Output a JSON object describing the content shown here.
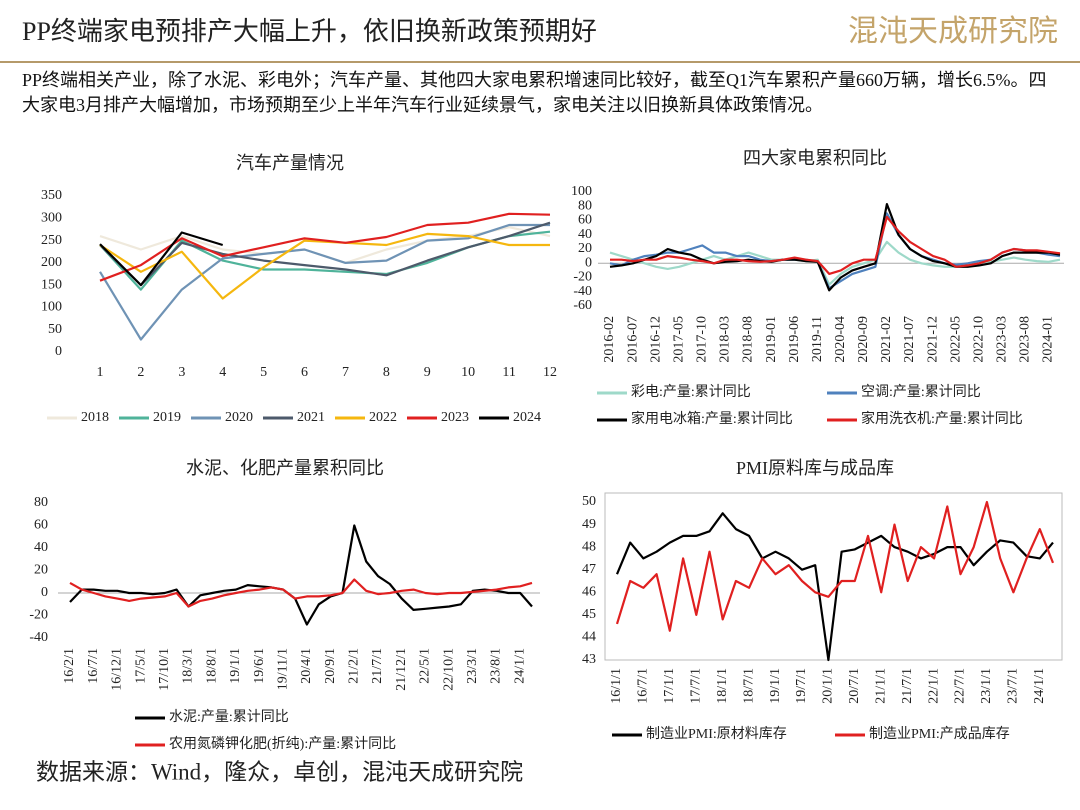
{
  "header": {
    "title": "PP终端家电预排产大幅上升，依旧换新政策预期好",
    "logo": "混沌天成研究院"
  },
  "description": "PP终端相关产业，除了水泥、彩电外；汽车产量、其他四大家电累积增速同比较好，截至Q1汽车累积产量660万辆，增长6.5%。四大家电3月排产大幅增加，市场预期至少上半年汽车行业延续景气，家电关注以旧换新具体政策情况。",
  "source": "数据来源：Wind，隆众，卓创，混沌天成研究院",
  "chart_data": [
    {
      "type": "line",
      "title": "汽车产量情况",
      "categories": [
        1,
        2,
        3,
        4,
        5,
        6,
        7,
        8,
        9,
        10,
        11,
        12
      ],
      "ylim": [
        0,
        350
      ],
      "yticks": [
        0,
        50,
        100,
        150,
        200,
        250,
        300,
        350
      ],
      "series": [
        {
          "name": "2018",
          "color": "#efe9dc",
          "values": [
            260,
            230,
            260,
            230,
            220,
            230,
            200,
            230,
            250,
            260,
            280,
            260
          ]
        },
        {
          "name": "2019",
          "color": "#4fb39a",
          "values": [
            240,
            140,
            250,
            205,
            185,
            185,
            180,
            175,
            200,
            235,
            260,
            270
          ]
        },
        {
          "name": "2020",
          "color": "#6f93b5",
          "values": [
            180,
            28,
            140,
            210,
            220,
            230,
            200,
            205,
            250,
            255,
            285,
            285
          ]
        },
        {
          "name": "2021",
          "color": "#4d5a6b",
          "values": [
            240,
            150,
            245,
            220,
            205,
            195,
            185,
            172,
            205,
            235,
            260,
            290
          ]
        },
        {
          "name": "2022",
          "color": "#f5b70f",
          "values": [
            240,
            180,
            225,
            120,
            190,
            250,
            245,
            240,
            265,
            260,
            240,
            240
          ]
        },
        {
          "name": "2023",
          "color": "#e02020",
          "values": [
            160,
            195,
            255,
            215,
            235,
            255,
            245,
            258,
            285,
            290,
            310,
            308
          ]
        },
        {
          "name": "2024",
          "color": "#000000",
          "values": [
            242,
            150,
            268,
            240,
            null,
            null,
            null,
            null,
            null,
            null,
            null,
            null
          ]
        }
      ]
    },
    {
      "type": "line",
      "title": "四大家电累积同比",
      "categories": [
        "2016-02",
        null,
        "2016-07",
        null,
        "2016-12",
        null,
        "2017-05",
        null,
        "2017-10",
        null,
        "2018-03",
        null,
        "2018-08",
        null,
        "2019-01",
        null,
        "2019-06",
        null,
        "2019-11",
        null,
        "2020-04",
        null,
        "2020-09",
        null,
        "2021-02",
        null,
        "2021-07",
        null,
        "2021-12",
        null,
        "2022-05",
        null,
        "2022-10",
        null,
        "2023-03",
        null,
        "2023-08",
        null,
        "2024-01",
        null
      ],
      "ylim": [
        -60,
        100
      ],
      "yticks": [
        -60,
        -40,
        -20,
        0,
        20,
        40,
        60,
        80,
        100
      ],
      "series": [
        {
          "name": "彩电:产量:累计同比",
          "color": "#9ed9c9",
          "values": [
            15,
            10,
            5,
            0,
            -5,
            -8,
            -5,
            0,
            5,
            10,
            5,
            10,
            15,
            10,
            5,
            5,
            5,
            3,
            5,
            -30,
            -15,
            -5,
            0,
            5,
            30,
            15,
            5,
            0,
            -3,
            -5,
            -5,
            -3,
            0,
            2,
            5,
            8,
            5,
            3,
            2,
            5
          ]
        },
        {
          "name": "空调:产量:累计同比",
          "color": "#4f81bd",
          "values": [
            0,
            -3,
            5,
            10,
            12,
            15,
            15,
            20,
            25,
            15,
            15,
            10,
            10,
            5,
            3,
            5,
            5,
            5,
            2,
            -35,
            -25,
            -15,
            -10,
            -5,
            70,
            40,
            20,
            10,
            5,
            0,
            -2,
            0,
            3,
            5,
            15,
            20,
            18,
            15,
            12,
            10
          ]
        },
        {
          "name": "家用电冰箱:产量:累计同比",
          "color": "#000000",
          "values": [
            -5,
            -3,
            0,
            5,
            10,
            20,
            15,
            12,
            5,
            0,
            2,
            3,
            5,
            3,
            2,
            5,
            5,
            3,
            2,
            -38,
            -20,
            -10,
            -5,
            0,
            83,
            40,
            20,
            10,
            3,
            0,
            -5,
            -5,
            -3,
            0,
            10,
            15,
            15,
            15,
            15,
            12
          ]
        },
        {
          "name": "家用洗衣机:产量:累计同比",
          "color": "#e02020",
          "values": [
            5,
            5,
            3,
            5,
            5,
            10,
            8,
            5,
            3,
            0,
            5,
            5,
            3,
            2,
            3,
            5,
            8,
            5,
            3,
            -15,
            -10,
            0,
            5,
            5,
            65,
            45,
            30,
            20,
            10,
            5,
            -5,
            -3,
            0,
            5,
            15,
            20,
            18,
            18,
            16,
            14
          ]
        }
      ]
    },
    {
      "type": "line",
      "title": "水泥、化肥产量累积同比",
      "categories": [
        "16/2/1",
        null,
        "16/7/1",
        null,
        "16/12/1",
        null,
        "17/5/1",
        null,
        "17/10/1",
        null,
        "18/3/1",
        null,
        "18/8/1",
        null,
        "19/1/1",
        null,
        "19/6/1",
        null,
        "19/11/1",
        null,
        "20/4/1",
        null,
        "20/9/1",
        null,
        "21/2/1",
        null,
        "21/7/1",
        null,
        "21/12/1",
        null,
        "22/5/1",
        null,
        "22/10/1",
        null,
        "23/3/1",
        null,
        "23/8/1",
        null,
        "24/1/1",
        null
      ],
      "ylim": [
        -40,
        80
      ],
      "yticks": [
        -40,
        -20,
        0,
        20,
        40,
        60,
        80
      ],
      "series": [
        {
          "name": "水泥:产量:累计同比",
          "color": "#000000",
          "values": [
            -8,
            3,
            3,
            2,
            2,
            0,
            0,
            -1,
            0,
            3,
            -12,
            -2,
            0,
            2,
            3,
            7,
            6,
            5,
            3,
            -5,
            -28,
            -10,
            -3,
            0,
            60,
            28,
            15,
            8,
            -5,
            -15,
            -14,
            -13,
            -12,
            -10,
            2,
            3,
            2,
            0,
            0,
            -12
          ]
        },
        {
          "name": "农用氮磷钾化肥(折纯):产量:累计同比",
          "color": "#e02020",
          "values": [
            9,
            3,
            0,
            -3,
            -5,
            -7,
            -5,
            -4,
            -3,
            0,
            -12,
            -7,
            -5,
            -2,
            0,
            2,
            3,
            5,
            3,
            -5,
            -3,
            -3,
            -2,
            0,
            12,
            2,
            -1,
            0,
            2,
            3,
            0,
            -1,
            0,
            0,
            1,
            2,
            3,
            5,
            6,
            9
          ]
        }
      ]
    },
    {
      "type": "line",
      "title": "PMI原料库与成品库",
      "categories": [
        "16/1/1",
        null,
        "16/7/1",
        null,
        "17/1/1",
        null,
        "17/7/1",
        null,
        "18/1/1",
        null,
        "18/7/1",
        null,
        "19/1/1",
        null,
        "19/7/1",
        null,
        "20/1/1",
        null,
        "20/7/1",
        null,
        "21/1/1",
        null,
        "21/7/1",
        null,
        "22/1/1",
        null,
        "22/7/1",
        null,
        "23/1/1",
        null,
        "23/7/1",
        null,
        "24/1/1",
        null
      ],
      "ylim": [
        43,
        50
      ],
      "yticks": [
        43,
        44,
        45,
        46,
        47,
        48,
        49,
        50
      ],
      "series": [
        {
          "name": "制造业PMI:原材料库存",
          "color": "#000000",
          "values": [
            46.8,
            48.2,
            47.5,
            47.8,
            48.2,
            48.5,
            48.5,
            48.7,
            49.5,
            48.8,
            48.5,
            47.5,
            47.8,
            47.5,
            47,
            47.2,
            43,
            47.8,
            47.9,
            48.2,
            48.5,
            48,
            47.8,
            47.5,
            47.7,
            48,
            48,
            47.2,
            47.8,
            48.3,
            48.2,
            47.6,
            47.5,
            48.2
          ]
        },
        {
          "name": "制造业PMI:产成品库存",
          "color": "#e02020",
          "values": [
            44.6,
            46.5,
            46.2,
            46.8,
            44.3,
            47.5,
            45,
            47.8,
            44.8,
            46.5,
            46.2,
            47.5,
            46.8,
            47.2,
            46.5,
            46,
            45.8,
            46.5,
            46.5,
            48.5,
            46,
            49,
            46.5,
            48,
            47.5,
            49.8,
            46.8,
            48,
            50,
            47.5,
            46,
            47.5,
            48.8,
            47.3
          ]
        }
      ]
    }
  ]
}
